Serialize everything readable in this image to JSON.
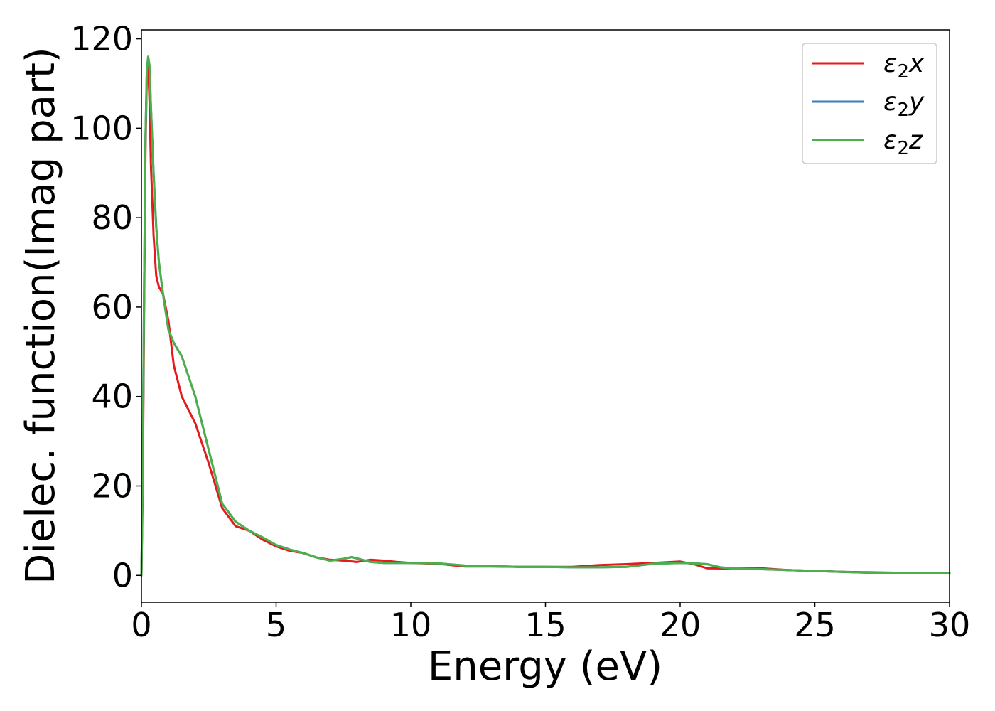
{
  "chart_data": {
    "type": "line",
    "xlabel": "Energy (eV)",
    "ylabel": "Dielec. function(Imag part)",
    "xlim": [
      0,
      30
    ],
    "ylim": [
      -6,
      122
    ],
    "xticks": [
      0,
      5,
      10,
      15,
      20,
      25,
      30
    ],
    "yticks": [
      0,
      20,
      40,
      60,
      80,
      100,
      120
    ],
    "grid": false,
    "legend_position": "top-right",
    "series": [
      {
        "name": "ε₂x",
        "legend_main": "ε",
        "legend_sub": "2",
        "legend_suffix": "x",
        "color": "#e41a1c",
        "x": [
          0,
          0.05,
          0.1,
          0.15,
          0.2,
          0.25,
          0.3,
          0.35,
          0.45,
          0.55,
          0.65,
          0.8,
          1.0,
          1.2,
          1.5,
          2.0,
          2.5,
          3.0,
          3.5,
          4.0,
          4.5,
          5.0,
          5.5,
          6.0,
          6.5,
          7.0,
          7.5,
          8.0,
          8.5,
          9.0,
          9.5,
          10.0,
          11.0,
          12.0,
          13.0,
          14.0,
          15.0,
          16.0,
          17.0,
          18.0,
          19.0,
          20.0,
          20.5,
          21.0,
          22.0,
          23.0,
          24.0,
          25.0,
          26.0,
          27.0,
          28.0,
          29.0,
          30.0
        ],
        "y": [
          0,
          20,
          60,
          95,
          112,
          114,
          106,
          92,
          76,
          67,
          64.5,
          63,
          57,
          47,
          40,
          34,
          25,
          15,
          11,
          10,
          8,
          6.5,
          5.5,
          5,
          4,
          3.5,
          3.3,
          3.0,
          3.5,
          3.3,
          3.0,
          2.8,
          2.6,
          2.0,
          2.0,
          1.9,
          1.9,
          1.9,
          2.3,
          2.5,
          2.8,
          3.1,
          2.5,
          1.6,
          1.5,
          1.6,
          1.2,
          1.0,
          0.8,
          0.7,
          0.6,
          0.5,
          0.5
        ]
      },
      {
        "name": "ε₂y",
        "legend_main": "ε",
        "legend_sub": "2",
        "legend_suffix": "y",
        "color": "#377eb8",
        "x": [
          0,
          0.05,
          0.1,
          0.15,
          0.2,
          0.25,
          0.3,
          0.35,
          0.45,
          0.55,
          0.65,
          0.8,
          1.0,
          1.2,
          1.5,
          2.0,
          2.5,
          3.0,
          3.5,
          4.0,
          4.5,
          5.0,
          5.5,
          6.0,
          6.5,
          7.0,
          7.5,
          7.8,
          8.2,
          8.5,
          9.0,
          10.0,
          11.0,
          12.0,
          13.0,
          14.0,
          15.0,
          16.0,
          17.0,
          18.0,
          19.0,
          20.0,
          20.5,
          21.0,
          21.5,
          22.0,
          23.0,
          24.0,
          25.0,
          26.0,
          27.0,
          28.0,
          29.0,
          30.0
        ],
        "y": [
          0,
          25,
          65,
          98,
          113,
          116,
          114,
          105,
          90,
          78,
          70,
          63,
          55,
          52,
          49,
          40,
          28,
          16,
          12,
          10,
          8.5,
          6.8,
          5.8,
          5,
          4,
          3.3,
          3.7,
          4.1,
          3.5,
          3.0,
          2.8,
          2.8,
          2.7,
          2.2,
          2.1,
          1.9,
          1.9,
          1.8,
          1.8,
          1.9,
          2.6,
          2.8,
          2.7,
          2.5,
          1.8,
          1.5,
          1.4,
          1.2,
          1.0,
          0.8,
          0.6,
          0.6,
          0.5,
          0.5
        ]
      },
      {
        "name": "ε₂z",
        "legend_main": "ε",
        "legend_sub": "2",
        "legend_suffix": "z",
        "color": "#4daf4a",
        "x": [
          0,
          0.05,
          0.1,
          0.15,
          0.2,
          0.25,
          0.3,
          0.35,
          0.45,
          0.55,
          0.65,
          0.8,
          1.0,
          1.2,
          1.5,
          2.0,
          2.5,
          3.0,
          3.5,
          4.0,
          4.5,
          5.0,
          5.5,
          6.0,
          6.5,
          7.0,
          7.5,
          7.8,
          8.2,
          8.5,
          9.0,
          10.0,
          11.0,
          12.0,
          13.0,
          14.0,
          15.0,
          16.0,
          17.0,
          18.0,
          19.0,
          20.0,
          20.5,
          21.0,
          21.5,
          22.0,
          23.0,
          24.0,
          25.0,
          26.0,
          27.0,
          28.0,
          29.0,
          30.0
        ],
        "y": [
          0,
          25,
          65,
          98,
          113,
          116,
          114,
          105,
          90,
          78,
          70,
          63,
          55,
          52,
          49,
          40,
          28,
          16,
          12,
          10,
          8.5,
          6.8,
          5.8,
          5,
          4,
          3.3,
          3.7,
          4.1,
          3.5,
          3.0,
          2.8,
          2.8,
          2.7,
          2.2,
          2.1,
          1.9,
          1.9,
          1.8,
          1.8,
          1.9,
          2.6,
          2.8,
          2.7,
          2.5,
          1.8,
          1.5,
          1.4,
          1.2,
          1.0,
          0.8,
          0.6,
          0.6,
          0.5,
          0.5
        ]
      }
    ]
  }
}
